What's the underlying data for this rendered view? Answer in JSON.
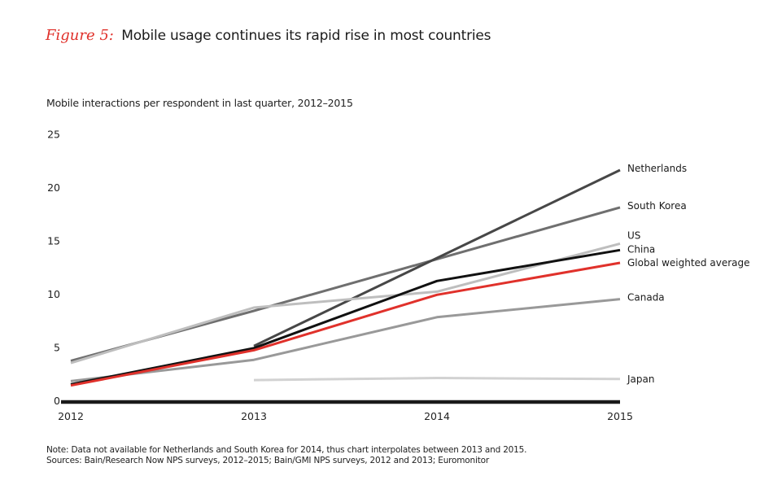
{
  "figure": {
    "number_label": "Figure 5:",
    "title": "Mobile usage continues its rapid rise in most countries",
    "subtitle": "Mobile interactions per respondent in last quarter, 2012–2015",
    "note": "Note: Data not available for Netherlands and South Korea for 2014, thus chart interpolates between 2013 and 2015.",
    "sources": "Sources: Bain/Research Now NPS surveys, 2012–2015; Bain/GMI NPS surveys, 2012 and 2013; Euromonitor"
  },
  "chart_data": {
    "type": "line",
    "title": "Mobile usage continues its rapid rise in most countries",
    "ylabel": "Mobile interactions per respondent in last quarter, 2012–2015",
    "xlabel": "",
    "x": [
      "2012",
      "2013",
      "2014",
      "2015"
    ],
    "ylim": [
      0,
      25
    ],
    "yticks": [
      0,
      5,
      10,
      15,
      20,
      25
    ],
    "grid": false,
    "legend": "direct labels at right end of lines",
    "series": [
      {
        "name": "Netherlands",
        "color": "#474747",
        "values": [
          null,
          5.1,
          null,
          21.6
        ]
      },
      {
        "name": "South Korea",
        "color": "#6f6f6f",
        "values": [
          3.7,
          8.4,
          null,
          18.1
        ]
      },
      {
        "name": "US",
        "color": "#bebebe",
        "values": [
          3.5,
          8.7,
          10.2,
          14.7
        ]
      },
      {
        "name": "China",
        "color": "#111111",
        "values": [
          1.5,
          4.9,
          11.2,
          14.1
        ]
      },
      {
        "name": "Global weighted average",
        "color": "#e0312b",
        "values": [
          1.4,
          4.7,
          9.9,
          12.9
        ]
      },
      {
        "name": "Canada",
        "color": "#999999",
        "values": [
          1.8,
          3.8,
          7.8,
          9.5
        ]
      },
      {
        "name": "Japan",
        "color": "#d2d2d2",
        "values": [
          null,
          1.9,
          2.1,
          2.0
        ]
      }
    ]
  }
}
